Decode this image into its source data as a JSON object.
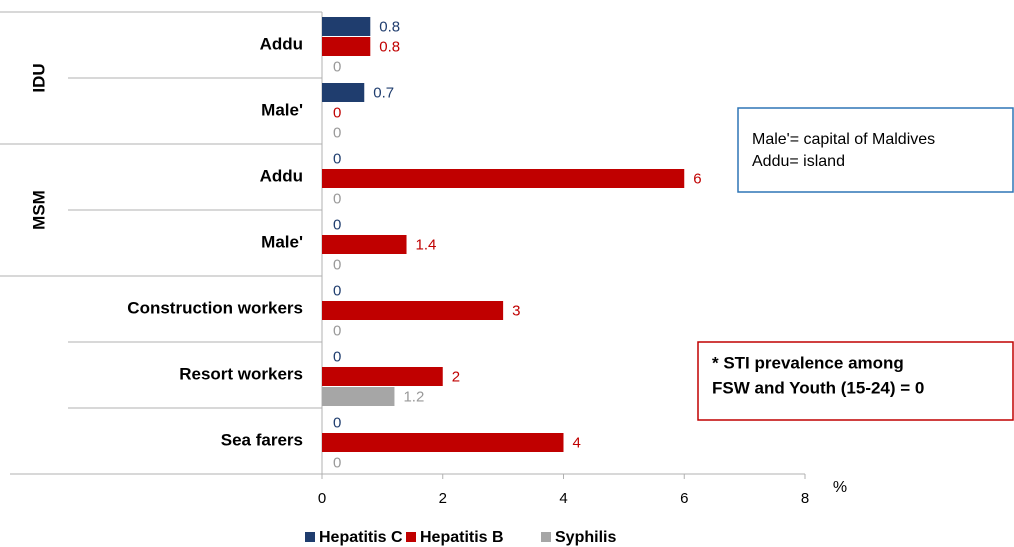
{
  "chart_data": {
    "type": "bar",
    "orientation": "horizontal",
    "categories": [
      "Addu",
      "Male'",
      "Addu",
      "Male'",
      "Construction workers",
      "Resort workers",
      "Sea farers"
    ],
    "groups": [
      {
        "name": "IDU",
        "size": 2
      },
      {
        "name": "MSM",
        "size": 2
      }
    ],
    "series": [
      {
        "name": "Hepatitis C",
        "color": "#1f3d6e",
        "values": [
          0.8,
          0.7,
          0,
          0,
          0,
          0,
          0
        ]
      },
      {
        "name": "Hepatitis B",
        "color": "#c00000",
        "values": [
          0.8,
          0,
          6,
          1.4,
          3,
          2,
          4
        ]
      },
      {
        "name": "Syphilis",
        "color": "#a6a6a6",
        "values": [
          0,
          0,
          0,
          0,
          0,
          1.2,
          0
        ]
      }
    ],
    "xlabel": "%",
    "xlim": [
      0,
      8
    ],
    "xticks": [
      0,
      2,
      4,
      6,
      8
    ],
    "annotations": [
      {
        "lines": [
          "Male'= capital of Maldives",
          "Addu=  island"
        ],
        "color": "#2e75b6"
      },
      {
        "lines": [
          "* STI prevalence among",
          "FSW and Youth (15-24)  = 0"
        ],
        "color": "#c00000"
      }
    ],
    "legend": "bottom"
  }
}
